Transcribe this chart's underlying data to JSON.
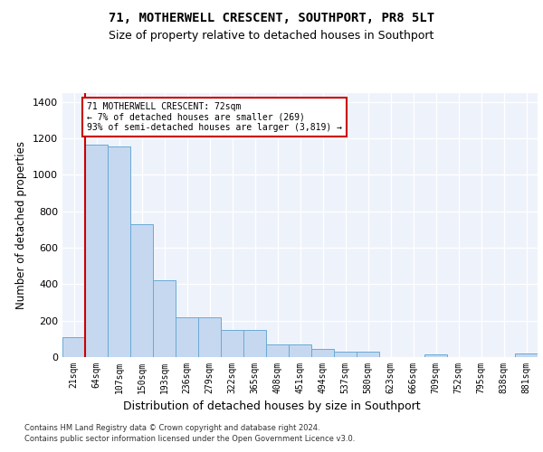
{
  "title1": "71, MOTHERWELL CRESCENT, SOUTHPORT, PR8 5LT",
  "title2": "Size of property relative to detached houses in Southport",
  "xlabel": "Distribution of detached houses by size in Southport",
  "ylabel": "Number of detached properties",
  "categories": [
    "21sqm",
    "64sqm",
    "107sqm",
    "150sqm",
    "193sqm",
    "236sqm",
    "279sqm",
    "322sqm",
    "365sqm",
    "408sqm",
    "451sqm",
    "494sqm",
    "537sqm",
    "580sqm",
    "623sqm",
    "666sqm",
    "709sqm",
    "752sqm",
    "795sqm",
    "838sqm",
    "881sqm"
  ],
  "bar_values": [
    110,
    1165,
    1155,
    730,
    420,
    220,
    220,
    150,
    150,
    70,
    70,
    45,
    30,
    30,
    0,
    0,
    14,
    0,
    0,
    0,
    20
  ],
  "annotation_text1": "71 MOTHERWELL CRESCENT: 72sqm",
  "annotation_text2": "← 7% of detached houses are smaller (269)",
  "annotation_text3": "93% of semi-detached houses are larger (3,819) →",
  "bar_color": "#c5d8f0",
  "bar_edge_color": "#6aaad4",
  "highlight_color": "#cc0000",
  "background_color": "#eef3fb",
  "ylim": [
    0,
    1450
  ],
  "yticks": [
    0,
    200,
    400,
    600,
    800,
    1000,
    1200,
    1400
  ],
  "footer1": "Contains HM Land Registry data © Crown copyright and database right 2024.",
  "footer2": "Contains public sector information licensed under the Open Government Licence v3.0."
}
